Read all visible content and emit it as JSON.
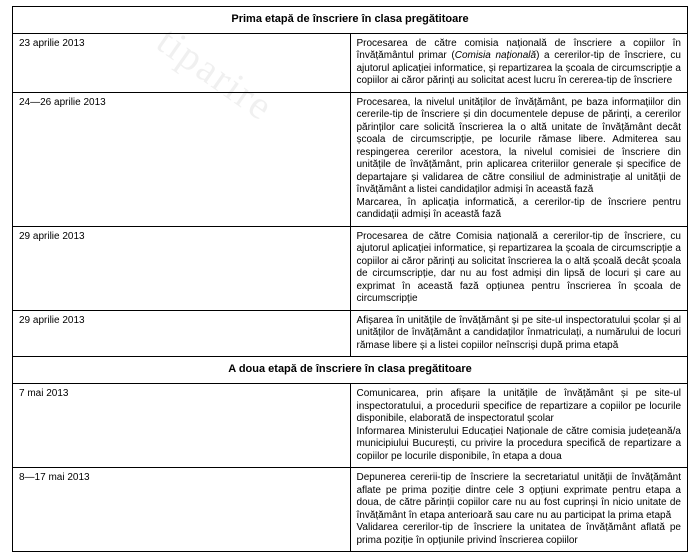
{
  "section1": {
    "title": "Prima etapă de înscriere în clasa pregătitoare"
  },
  "rows1": [
    {
      "date": "23 aprilie 2013",
      "text": "Procesarea de către comisia națională de înscriere a copiilor în învățământul primar (Comisia națională) a cererilor-tip de înscriere, cu ajutorul aplicației informatice, și repartizarea la școala de circumscripție a copiilor ai căror părinți au solicitat acest lucru în cererea-tip de înscriere"
    },
    {
      "date": "24—26 aprilie 2013",
      "text": "Procesarea, la nivelul unităților de învățământ, pe baza informațiilor din cererile-tip de înscriere și din documentele depuse de părinți, a cererilor părinților care solicită înscrierea la o altă unitate de învățământ decât școala de circumscripție, pe locurile rămase libere. Admiterea sau respingerea cererilor acestora, la nivelul comisiei de înscriere din unitățile de învățământ, prin aplicarea criteriilor generale și specifice de departajare și validarea de către consiliul de administrație al unității de învățământ a listei candidaților admiși în această fază\nMarcarea, în aplicația informatică, a cererilor-tip de înscriere pentru candidații admiși în această fază"
    },
    {
      "date": "29 aprilie 2013",
      "text": "Procesarea de către Comisia națională a cererilor-tip de înscriere, cu ajutorul aplicației informatice, și repartizarea la școala de circumscripție a copiilor ai căror părinți au solicitat înscrierea la o altă școală decât școala de circumscripție, dar nu au fost admiși din lipsă de locuri și care au exprimat în această fază opțiunea pentru înscrierea în școala de circumscripție"
    },
    {
      "date": "29 aprilie 2013",
      "text": "Afișarea în unitățile de învățământ și pe site-ul inspectoratului școlar și al unităților de învățământ a candidaților înmatriculați, a numărului de locuri rămase libere și a listei copiilor neînscriși după prima etapă"
    }
  ],
  "section2": {
    "title": "A doua etapă de înscriere în clasa pregătitoare"
  },
  "rows2": [
    {
      "date": "7 mai 2013",
      "text": "Comunicarea, prin afișare la unitățile de învățământ și pe site-ul inspectoratului, a procedurii specifice de repartizare a copiilor pe locurile disponibile, elaborată de inspectoratul școlar\nInformarea Ministerului Educației Naționale de către comisia județeană/a municipiului București, cu privire la procedura specifică de repartizare a copiilor pe locurile disponibile, în etapa a doua"
    },
    {
      "date": "8—17 mai 2013",
      "text": "Depunerea cererii-tip de înscriere la secretariatul unității de învățământ aflate pe prima poziție dintre cele 3 opțiuni exprimate pentru etapa a doua, de către părinții copiilor care nu au fost cuprinși în nicio unitate de învățământ în etapa anterioară sau care nu au participat la prima etapă\nValidarea cererilor-tip de înscriere la unitatea de învățământ aflată pe prima poziție în opțiunile privind înscrierea copiilor"
    }
  ],
  "colors": {
    "text": "#000000",
    "border": "#000000",
    "background": "#ffffff"
  },
  "fonts": {
    "body_size": 10,
    "header_size": 11
  }
}
